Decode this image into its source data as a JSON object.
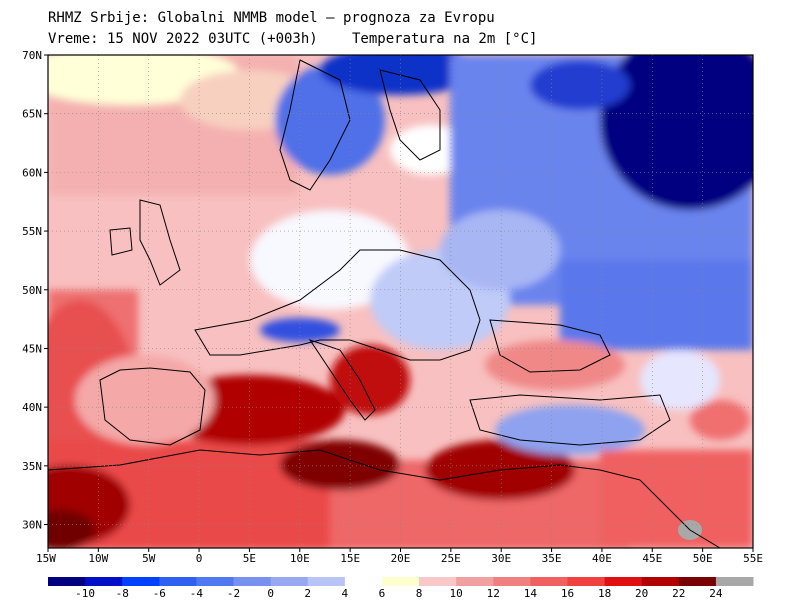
{
  "header": {
    "title_line1": "RHMZ Srbije: Globalni NMMB model — prognoza za Evropu",
    "title_line2": "Vreme: 15 NOV 2022 03UTC (+003h)",
    "variable": "Temperatura na 2m [°C]"
  },
  "map": {
    "lon_range": [
      -15,
      55
    ],
    "lat_range": [
      28,
      70
    ],
    "lat_labels": [
      "30N",
      "35N",
      "40N",
      "45N",
      "50N",
      "55N",
      "60N",
      "65N",
      "70N"
    ],
    "lat_values": [
      30,
      35,
      40,
      45,
      50,
      55,
      60,
      65,
      70
    ],
    "lon_labels": [
      "15W",
      "10W",
      "5W",
      "0",
      "5E",
      "10E",
      "15E",
      "20E",
      "25E",
      "30E",
      "35E",
      "40E",
      "45E",
      "50E",
      "55E"
    ],
    "lon_values": [
      -15,
      -10,
      -5,
      0,
      5,
      10,
      15,
      20,
      25,
      30,
      35,
      40,
      45,
      50,
      55
    ]
  },
  "colorbar": {
    "labels": [
      "-10",
      "-8",
      "-6",
      "-4",
      "-2",
      "0",
      "2",
      "4",
      "6",
      "8",
      "10",
      "12",
      "14",
      "16",
      "18",
      "20",
      "22",
      "24"
    ],
    "colors": [
      "#000080",
      "#0010c8",
      "#0040ff",
      "#3060f0",
      "#5078f0",
      "#7890f0",
      "#98a8f0",
      "#b8c4f8",
      "#ffffff",
      "#ffffd0",
      "#f8c8c8",
      "#f0a0a0",
      "#f08080",
      "#f06060",
      "#f04040",
      "#e01010",
      "#b00000",
      "#780000",
      "#a8a8a8"
    ]
  }
}
